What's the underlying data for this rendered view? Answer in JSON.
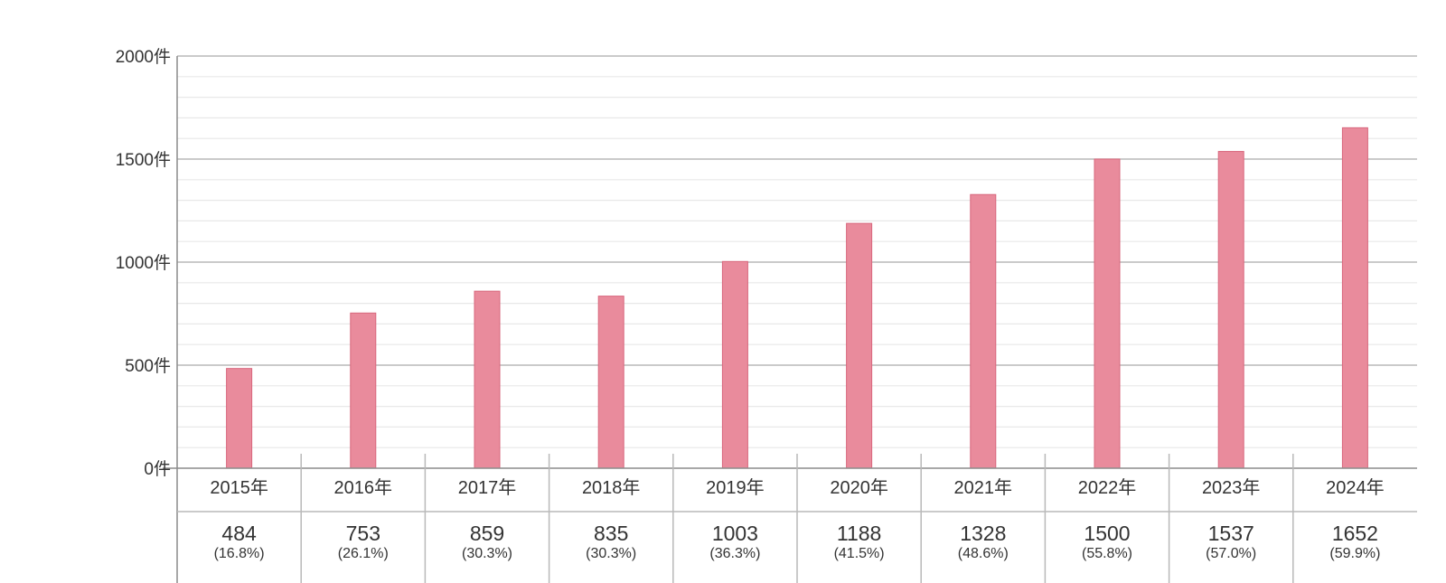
{
  "chart_data": {
    "type": "bar",
    "title": "",
    "xlabel": "",
    "ylabel": "",
    "ylim": [
      0,
      2000
    ],
    "yticks": [
      0,
      500,
      1000,
      1500,
      2000
    ],
    "ytick_labels": [
      "0件",
      "500件",
      "1000件",
      "1500件",
      "2000件"
    ],
    "minor_grid_step": 100,
    "grid": true,
    "categories": [
      "2015年",
      "2016年",
      "2017年",
      "2018年",
      "2019年",
      "2020年",
      "2021年",
      "2022年",
      "2023年",
      "2024年"
    ],
    "values": [
      484,
      753,
      859,
      835,
      1003,
      1188,
      1328,
      1500,
      1537,
      1652
    ],
    "value_labels": [
      "484",
      "753",
      "859",
      "835",
      "1003",
      "1188",
      "1328",
      "1500",
      "1537",
      "1652"
    ],
    "percent_labels": [
      "(16.8%)",
      "(26.1%)",
      "(30.3%)",
      "(30.3%)",
      "(36.3%)",
      "(41.5%)",
      "(48.6%)",
      "(55.8%)",
      "(57.0%)",
      "(59.9%)"
    ],
    "colors": {
      "bar": "#e98b9c",
      "bar_stroke": "#d8677d",
      "major_grid": "#b9b9b9",
      "minor_grid": "#e8e8e8",
      "axis": "#8c8c8c",
      "text": "#333333"
    }
  }
}
